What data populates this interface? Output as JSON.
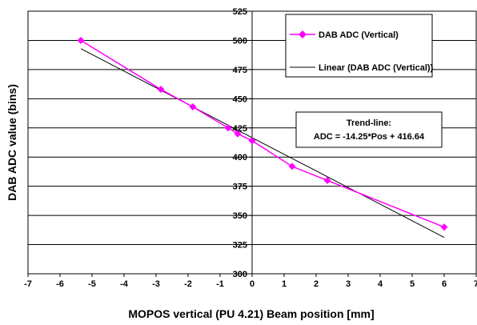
{
  "chart_data": {
    "type": "scatter",
    "xlabel": "MOPOS vertical (PU 4.21) Beam position [mm]",
    "ylabel": "DAB ADC value (bins)",
    "xlim": [
      -7,
      7
    ],
    "ylim": [
      300,
      525
    ],
    "x_ticks": [
      -7,
      -6,
      -5,
      -4,
      -3,
      -2,
      -1,
      0,
      1,
      2,
      3,
      4,
      5,
      6,
      7
    ],
    "y_ticks": [
      300,
      325,
      350,
      375,
      400,
      425,
      450,
      475,
      500,
      525
    ],
    "grid": "horizontal",
    "series": [
      {
        "name": "DAB ADC (Vertical)",
        "color": "#ff00ff",
        "marker": "diamond",
        "x": [
          -5.35,
          -2.85,
          -1.85,
          -0.75,
          -0.45,
          0.0,
          1.25,
          2.35,
          6.0
        ],
        "y": [
          500,
          458,
          443,
          425,
          420,
          414,
          392,
          380,
          340
        ]
      },
      {
        "name": "Linear (DAB ADC (Vertical))",
        "color": "#000000",
        "type": "trendline",
        "x": [
          -5.35,
          6.0
        ],
        "y": [
          492.88,
          331.14
        ]
      }
    ],
    "legend_position": "top-right",
    "annotation": {
      "title": "Trend-line:",
      "equation": "ADC = -14.25*Pos + 416.64"
    }
  }
}
